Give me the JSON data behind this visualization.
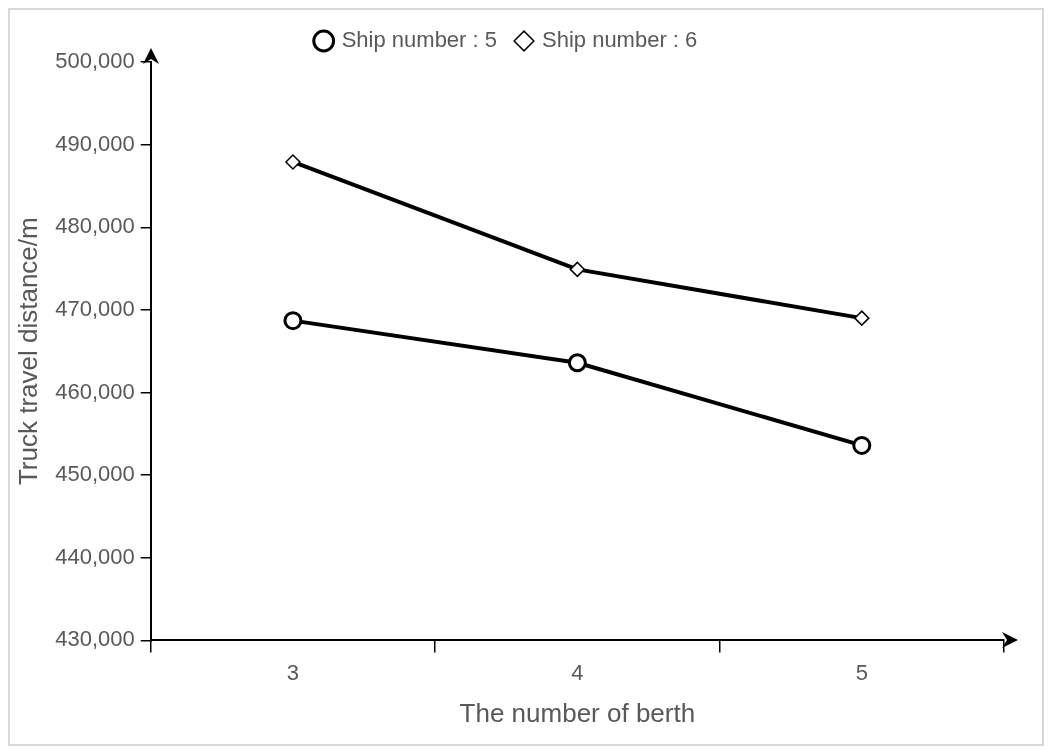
{
  "chart_data": {
    "type": "line",
    "xlabel": "The number of berth",
    "ylabel": "Truck travel distance/m",
    "categories": [
      "3",
      "4",
      "5"
    ],
    "series": [
      {
        "name": "Ship number : 5",
        "color": "#000000",
        "marker": "circle",
        "values": [
          468700,
          463600,
          453600
        ]
      },
      {
        "name": "Ship number : 6",
        "color": "#000000",
        "marker": "diamond",
        "values": [
          487900,
          474900,
          469000
        ]
      }
    ],
    "ylim": [
      430000,
      500000
    ],
    "yticks": [
      {
        "value": 430000,
        "label": "430,000"
      },
      {
        "value": 440000,
        "label": "440,000"
      },
      {
        "value": 450000,
        "label": "450,000"
      },
      {
        "value": 460000,
        "label": "460,000"
      },
      {
        "value": 470000,
        "label": "470,000"
      },
      {
        "value": 480000,
        "label": "480,000"
      },
      {
        "value": 490000,
        "label": "490,000"
      },
      {
        "value": 500000,
        "label": "500,000"
      }
    ],
    "grid": false,
    "legend": "top",
    "line_style": "solid"
  }
}
